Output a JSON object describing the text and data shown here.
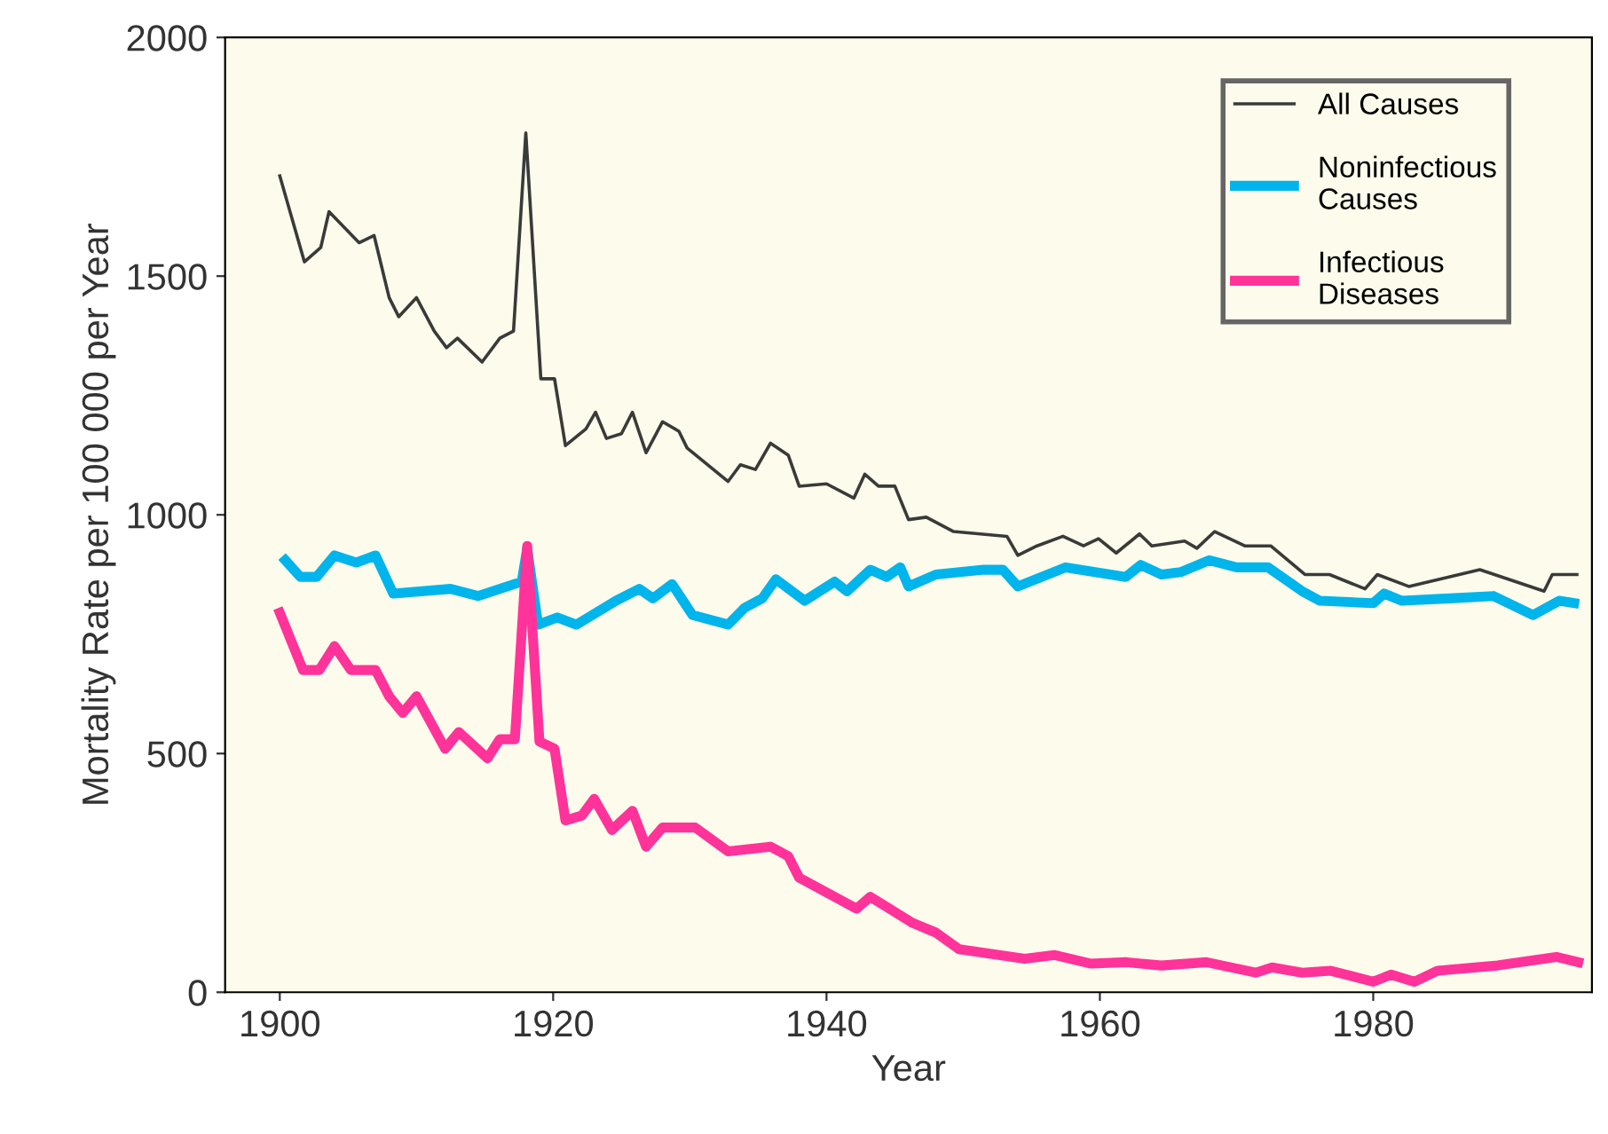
{
  "chart_data": {
    "type": "line",
    "xlabel": "Year",
    "ylabel": "Mortality Rate per 100 000 per Year",
    "xlim": [
      1896,
      1996
    ],
    "ylim": [
      0,
      2000
    ],
    "xticks": [
      1900,
      1920,
      1940,
      1960,
      1980
    ],
    "yticks": [
      0,
      500,
      1000,
      1500,
      2000
    ],
    "grid": false,
    "legend": "top right",
    "marker": "none",
    "line_style": "solid",
    "series": [
      {
        "name": "All Causes",
        "color": "#3a3a3a",
        "x": [
          1900,
          1901.8,
          1903,
          1903.6,
          1905.8,
          1906.9,
          1908,
          1908.7,
          1910,
          1911.3,
          1912.2,
          1913,
          1914.8,
          1916.1,
          1917.1,
          1918,
          1919.1,
          1920.1,
          1920.9,
          1922.4,
          1923.1,
          1923.9,
          1925,
          1925.8,
          1926.8,
          1928,
          1929.2,
          1929.8,
          1932.8,
          1933.7,
          1934.8,
          1935.9,
          1937.2,
          1938,
          1940,
          1942,
          1942.8,
          1943.8,
          1945,
          1946,
          1947.3,
          1949.3,
          1953.2,
          1954,
          1955.4,
          1957.3,
          1958.8,
          1959.9,
          1961.2,
          1962.9,
          1963.8,
          1966.2,
          1967.1,
          1968.4,
          1970.6,
          1972.5,
          1975,
          1976.8,
          1979.4,
          1980.3,
          1982.6,
          1987.8,
          1992.5,
          1993.1,
          1994.9
        ],
        "values": [
          1710,
          1530,
          1560,
          1635,
          1570,
          1585,
          1455,
          1415,
          1455,
          1385,
          1350,
          1370,
          1320,
          1370,
          1385,
          1800,
          1285,
          1285,
          1145,
          1180,
          1215,
          1160,
          1170,
          1215,
          1130,
          1195,
          1175,
          1140,
          1070,
          1105,
          1095,
          1150,
          1125,
          1060,
          1065,
          1035,
          1085,
          1060,
          1060,
          990,
          995,
          965,
          955,
          915,
          935,
          955,
          935,
          950,
          920,
          960,
          935,
          945,
          930,
          965,
          935,
          935,
          875,
          875,
          845,
          875,
          850,
          885,
          840,
          875,
          875
        ]
      },
      {
        "name": "Noninfectious\nCauses",
        "color": "#00b4ec",
        "x": [
          1900.4,
          1901.5,
          1902.7,
          1904,
          1905.6,
          1907,
          1908.3,
          1912.5,
          1914.5,
          1917.7,
          1918.1,
          1918.9,
          1920.3,
          1921.7,
          1924.6,
          1926.3,
          1927.3,
          1928.7,
          1930.2,
          1932.8,
          1934,
          1935.3,
          1936.3,
          1938.4,
          1940.6,
          1941.5,
          1943.2,
          1944.4,
          1945.4,
          1946,
          1948,
          1951.5,
          1952.9,
          1954,
          1957.5,
          1961.9,
          1963,
          1964.5,
          1965.9,
          1968,
          1970,
          1972.3,
          1974.8,
          1976.1,
          1980,
          1980.8,
          1982.1,
          1985.6,
          1988.8,
          1991.7,
          1993.6,
          1994.7
        ],
        "values": [
          905,
          870,
          870,
          915,
          900,
          915,
          835,
          845,
          830,
          860,
          930,
          770,
          785,
          770,
          820,
          845,
          825,
          855,
          790,
          770,
          805,
          825,
          865,
          820,
          860,
          840,
          885,
          870,
          890,
          850,
          875,
          885,
          885,
          850,
          890,
          870,
          895,
          875,
          880,
          905,
          890,
          890,
          840,
          820,
          815,
          835,
          820,
          825,
          830,
          790,
          820,
          815
        ]
      },
      {
        "name": "Infectious\nDiseases",
        "color": "#ff3399",
        "x": [
          1900,
          1901.7,
          1902.9,
          1904,
          1905.2,
          1907,
          1908,
          1909,
          1910,
          1912.1,
          1913.1,
          1915.2,
          1916.1,
          1917.2,
          1918.1,
          1919,
          1920.1,
          1920.9,
          1922.1,
          1923,
          1924.3,
          1925.8,
          1926.8,
          1928,
          1930.4,
          1932.8,
          1935.9,
          1937.2,
          1938,
          1942.2,
          1943.2,
          1946.3,
          1948,
          1949.7,
          1954.5,
          1956.7,
          1959.3,
          1961.9,
          1964.5,
          1967.8,
          1971.4,
          1972.6,
          1974.8,
          1976.9,
          1980,
          1981.3,
          1983,
          1984.7,
          1989.1,
          1993.4,
          1995
        ],
        "values": [
          795,
          675,
          675,
          725,
          675,
          675,
          620,
          585,
          620,
          510,
          545,
          490,
          530,
          530,
          935,
          525,
          510,
          360,
          370,
          405,
          340,
          380,
          305,
          345,
          345,
          295,
          305,
          285,
          240,
          175,
          200,
          145,
          125,
          90,
          70,
          78,
          60,
          63,
          56,
          63,
          41,
          52,
          41,
          45,
          22,
          37,
          22,
          45,
          56,
          74,
          63
        ]
      }
    ]
  }
}
